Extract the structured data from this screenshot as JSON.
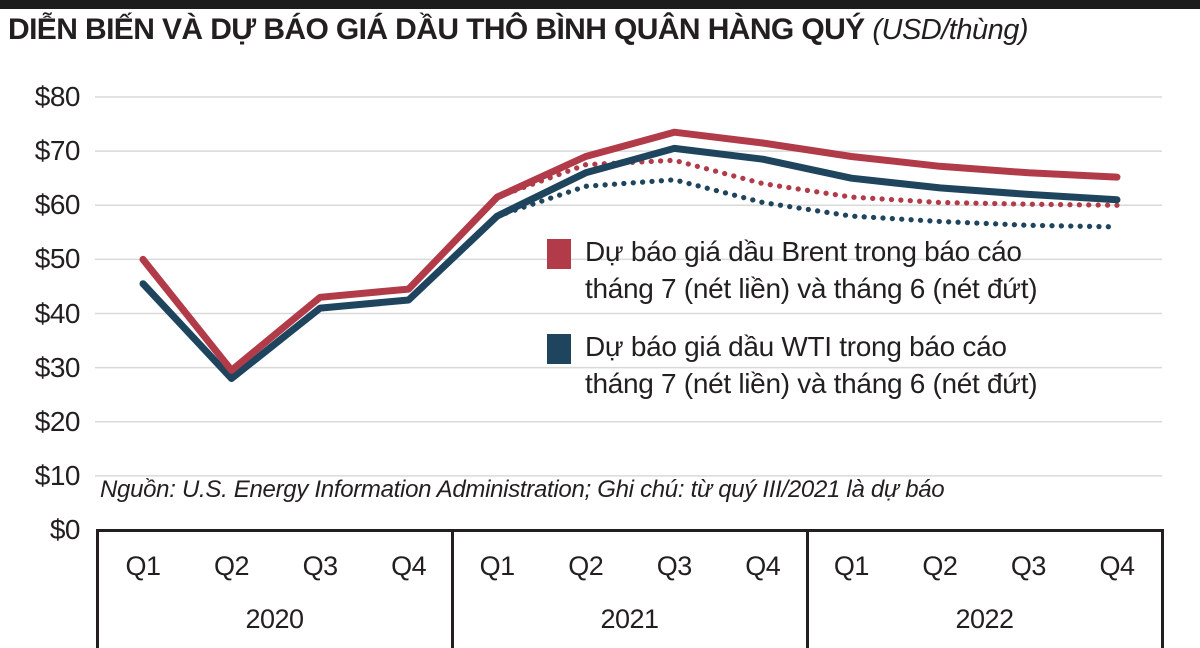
{
  "header": {
    "title": "DIỄN BIẾN VÀ DỰ BÁO GIÁ DẦU THÔ BÌNH QUÂN HÀNG QUÝ",
    "unit": "(USD/thùng)",
    "bar_color": "#1c1c1c"
  },
  "legend": [
    {
      "color": "#b23b49",
      "line1": "Dự báo giá dầu Brent trong báo cáo",
      "line2": "tháng 7 (nét liền) và tháng 6 (nét đứt)"
    },
    {
      "color": "#1f455e",
      "line1": "Dự báo giá dầu WTI trong báo cáo",
      "line2": "tháng 7 (nét liền) và tháng 6 (nét đứt)"
    }
  ],
  "source_note": "Nguồn: U.S. Energy Information Administration; Ghi chú: từ quý III/2021 là dự báo",
  "colors": {
    "brent": "#b23b49",
    "wti": "#1f455e",
    "gridline": "#d9d9d9",
    "axis": "#231f20",
    "text": "#231f20"
  },
  "chart_data": {
    "type": "line",
    "title": "Diễn biến và dự báo giá dầu thô bình quân hàng quý (USD/thùng)",
    "ylim": [
      0,
      80
    ],
    "grid": true,
    "y_axis": {
      "tick_labels": [
        "$80",
        "$70",
        "$60",
        "$50",
        "$40",
        "$30",
        "$20",
        "$10",
        "$0"
      ],
      "tick_values": [
        80,
        70,
        60,
        50,
        40,
        30,
        20,
        10,
        0
      ]
    },
    "x_axis": {
      "years": [
        {
          "label": "2020",
          "quarters": [
            "Q1",
            "Q2",
            "Q3",
            "Q4"
          ]
        },
        {
          "label": "2021",
          "quarters": [
            "Q1",
            "Q2",
            "Q3",
            "Q4"
          ]
        },
        {
          "label": "2022",
          "quarters": [
            "Q1",
            "Q2",
            "Q3",
            "Q4"
          ]
        }
      ]
    },
    "categories": [
      "Q1 2020",
      "Q2 2020",
      "Q3 2020",
      "Q4 2020",
      "Q1 2021",
      "Q2 2021",
      "Q3 2021",
      "Q4 2021",
      "Q1 2022",
      "Q2 2022",
      "Q3 2022",
      "Q4 2022"
    ],
    "series": [
      {
        "name": "Dự báo giá dầu WTI trong báo cáo tháng 6 (nét đứt)",
        "color": "#1f455e",
        "style": "dotted",
        "values": [
          null,
          null,
          null,
          null,
          58,
          63.5,
          64.7,
          60.5,
          58,
          57,
          56.3,
          56
        ]
      },
      {
        "name": "Dự báo giá dầu Brent trong báo cáo tháng 6 (nét đứt)",
        "color": "#b23b49",
        "style": "dotted",
        "values": [
          null,
          null,
          null,
          null,
          61.5,
          67.5,
          68.3,
          64,
          61.5,
          60.5,
          60.2,
          60
        ]
      },
      {
        "name": "Dự báo giá dầu WTI trong báo cáo tháng 7 (nét liền)",
        "color": "#1f455e",
        "style": "solid",
        "values": [
          45.5,
          28,
          41,
          42.5,
          58,
          66,
          70.5,
          68.5,
          65,
          63.2,
          62,
          61
        ]
      },
      {
        "name": "Dự báo giá dầu Brent trong báo cáo tháng 7 (nét liền)",
        "color": "#b23b49",
        "style": "solid",
        "values": [
          50,
          29.5,
          43,
          44.5,
          61.5,
          69,
          73.5,
          71.5,
          69,
          67.2,
          66,
          65.2
        ]
      }
    ]
  }
}
